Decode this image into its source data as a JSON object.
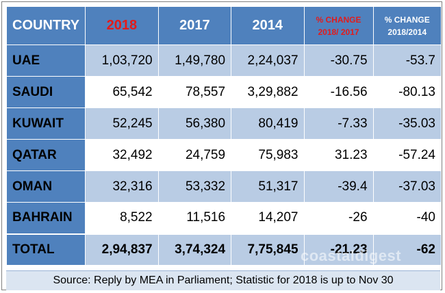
{
  "header": {
    "country": "COUNTRY",
    "y2018": "2018",
    "y2017": "2017",
    "y2014": "2014",
    "chg1_line1": "% CHANGE",
    "chg1_line2": "2018/ 2017",
    "chg2_line1": "% CHANGE",
    "chg2_line2": "2018/2014"
  },
  "rows": [
    {
      "country": "UAE",
      "y2018": "1,03,720",
      "y2017": "1,49,780",
      "y2014": "2,24,037",
      "chg1": "-30.75",
      "chg2": "-53.7"
    },
    {
      "country": "SAUDI",
      "y2018": "65,542",
      "y2017": "78,557",
      "y2014": "3,29,882",
      "chg1": "-16.56",
      "chg2": "-80.13"
    },
    {
      "country": "KUWAIT",
      "y2018": "52,245",
      "y2017": "56,380",
      "y2014": "80,419",
      "chg1": "-7.33",
      "chg2": "-35.03"
    },
    {
      "country": "QATAR",
      "y2018": "32,492",
      "y2017": "24,759",
      "y2014": "75,983",
      "chg1": "31.23",
      "chg2": "-57.24"
    },
    {
      "country": "OMAN",
      "y2018": "32,316",
      "y2017": "53,332",
      "y2014": "51,317",
      "chg1": "-39.4",
      "chg2": "-37.03"
    },
    {
      "country": "BAHRAIN",
      "y2018": "8,522",
      "y2017": "11,516",
      "y2014": "14,207",
      "chg1": "-26",
      "chg2": "-40"
    }
  ],
  "total": {
    "country": "TOTAL",
    "y2018": "2,94,837",
    "y2017": "3,74,324",
    "y2014": "7,75,845",
    "chg1": "-21.23",
    "chg2": "-62"
  },
  "source": "Source: Reply by MEA in Parliament; Statistic for 2018 is up to Nov 30",
  "watermark": "coastaldigest",
  "colors": {
    "header_bg": "#4f81bd",
    "band": "#b9cce4",
    "red": "#c00000"
  }
}
